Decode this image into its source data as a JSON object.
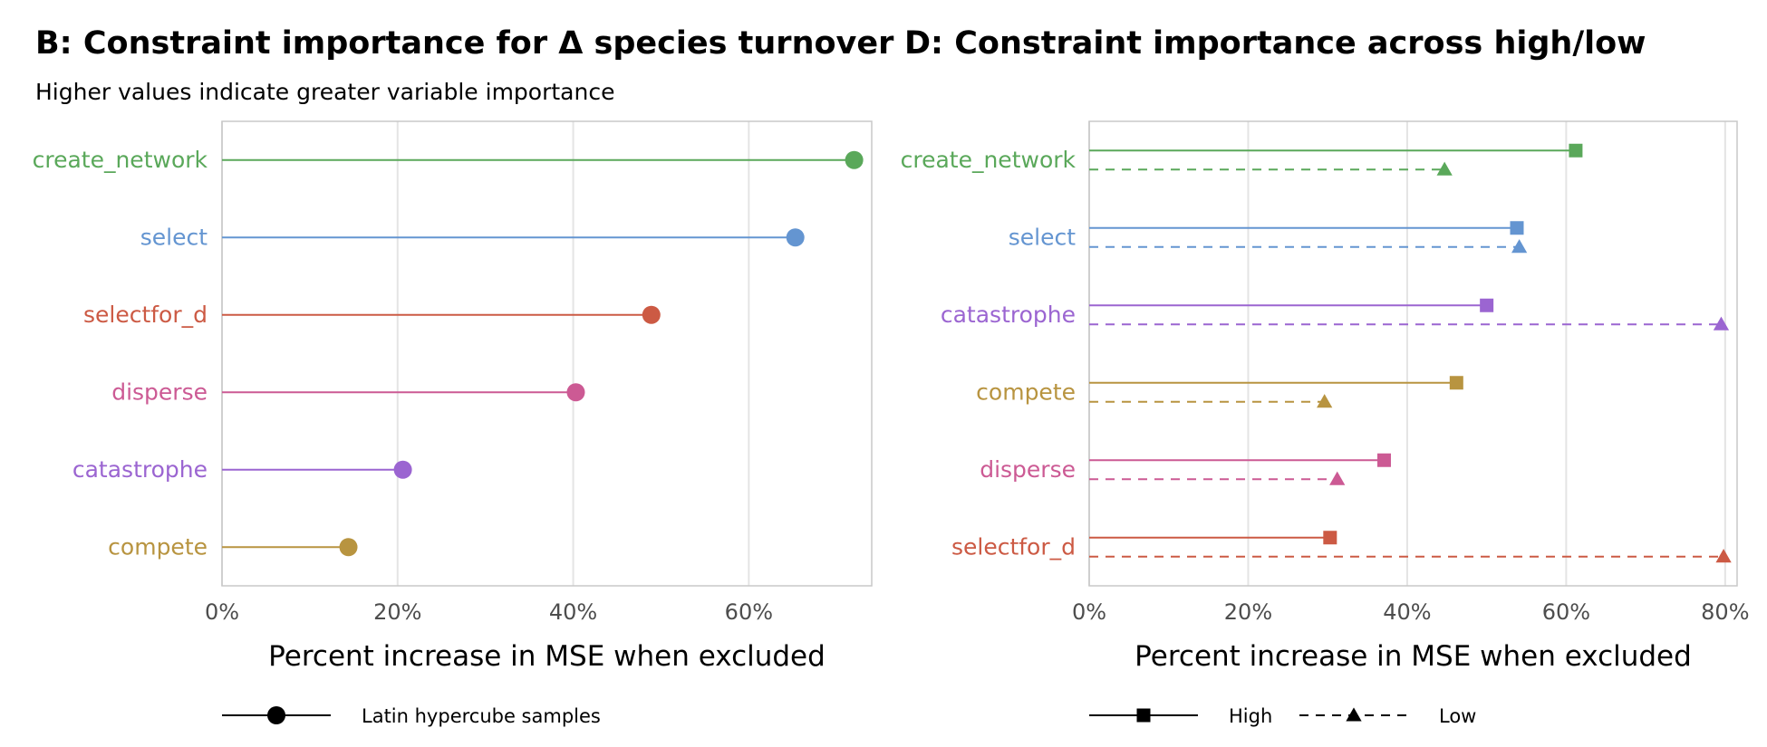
{
  "chart_data": [
    {
      "type": "lollipop",
      "title": "B: Constraint importance for Δ species turnover",
      "subtitle": "Higher values indicate greater variable importance",
      "xlabel": "Percent increase in MSE when excluded",
      "ylabel": "",
      "xlim": [
        0,
        74
      ],
      "x_ticks": [
        0,
        20,
        40,
        60
      ],
      "x_tick_labels": [
        "0%",
        "20%",
        "40%",
        "60%"
      ],
      "grid": true,
      "categories": [
        "create_network",
        "select",
        "selectfor_d",
        "disperse",
        "catastrophe",
        "compete"
      ],
      "category_colors": [
        "#5aa85a",
        "#6495d1",
        "#cc5a44",
        "#cc5a94",
        "#9b65d1",
        "#b89440"
      ],
      "series": [
        {
          "name": "Latin hypercube samples",
          "marker": "circle",
          "line": "solid",
          "values": [
            72,
            65.3,
            48.9,
            40.3,
            20.6,
            14.4
          ]
        }
      ],
      "legend": {
        "position": "bottom",
        "entries": [
          "Latin hypercube samples"
        ]
      }
    },
    {
      "type": "lollipop",
      "title": "D: Constraint importance across high/low",
      "xlabel": "Percent increase in MSE when excluded",
      "ylabel": "",
      "xlim": [
        0,
        81.5
      ],
      "x_ticks": [
        0,
        20,
        40,
        60,
        80
      ],
      "x_tick_labels": [
        "0%",
        "20%",
        "40%",
        "60%",
        "80%"
      ],
      "grid": true,
      "categories": [
        "create_network",
        "select",
        "catastrophe",
        "compete",
        "disperse",
        "selectfor_d"
      ],
      "category_colors": [
        "#5aa85a",
        "#6495d1",
        "#9b65d1",
        "#b89440",
        "#cc5a94",
        "#cc5a44"
      ],
      "series": [
        {
          "name": "High",
          "marker": "square",
          "line": "solid",
          "values": [
            61.2,
            53.8,
            50.0,
            46.2,
            37.1,
            30.3
          ]
        },
        {
          "name": "Low",
          "marker": "triangle",
          "line": "dashed",
          "values": [
            44.7,
            54.1,
            79.5,
            29.6,
            31.2,
            79.8
          ]
        }
      ],
      "legend": {
        "position": "bottom",
        "entries": [
          "High",
          "Low"
        ]
      }
    }
  ]
}
